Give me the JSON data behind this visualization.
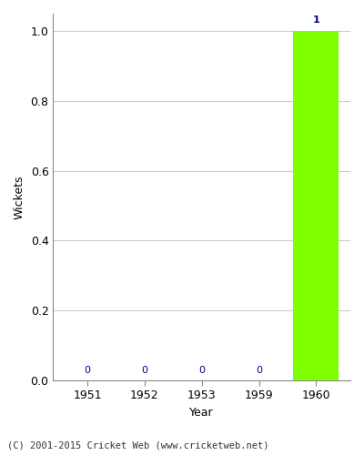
{
  "years": [
    1951,
    1952,
    1953,
    1959,
    1960
  ],
  "values": [
    0,
    0,
    0,
    0,
    1
  ],
  "bar_color": "#7fff00",
  "zero_label_color": "#00008b",
  "value_label_color": "#00008b",
  "xlabel": "Year",
  "ylabel": "Wickets",
  "ylim_max": 1.05,
  "yticks": [
    0.0,
    0.2,
    0.4,
    0.6,
    0.8,
    1.0
  ],
  "background_color": "#ffffff",
  "footer": "(C) 2001-2015 Cricket Web (www.cricketweb.net)",
  "grid_color": "#cccccc",
  "bar_width": 0.8,
  "tick_label_fontsize": 9,
  "label_fontsize": 9
}
